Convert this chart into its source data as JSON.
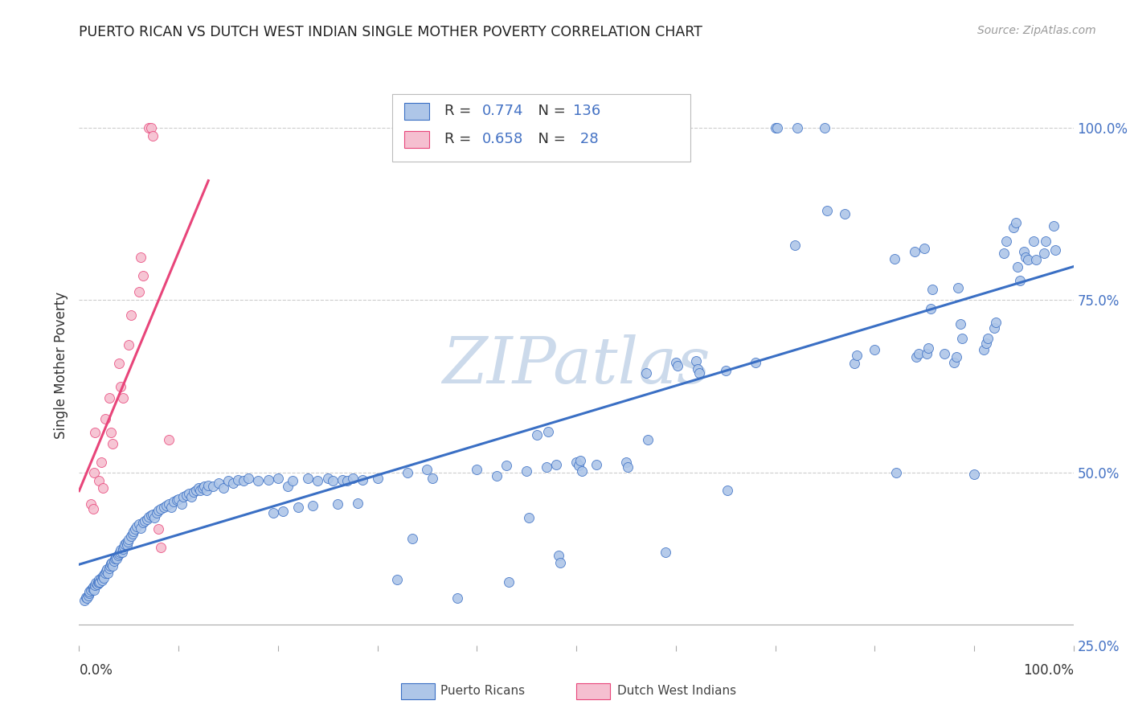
{
  "title": "PUERTO RICAN VS DUTCH WEST INDIAN SINGLE MOTHER POVERTY CORRELATION CHART",
  "source": "Source: ZipAtlas.com",
  "ylabel": "Single Mother Poverty",
  "color_blue": "#aec6e8",
  "color_pink": "#f5bfd0",
  "line_blue": "#3a6fc4",
  "line_pink": "#e8457a",
  "text_blue": "#4472c4",
  "watermark_color": "#ccdaeb",
  "blue_points": [
    [
      0.005,
      0.315
    ],
    [
      0.007,
      0.32
    ],
    [
      0.008,
      0.318
    ],
    [
      0.009,
      0.322
    ],
    [
      0.01,
      0.325
    ],
    [
      0.01,
      0.328
    ],
    [
      0.012,
      0.33
    ],
    [
      0.013,
      0.332
    ],
    [
      0.014,
      0.335
    ],
    [
      0.015,
      0.333
    ],
    [
      0.015,
      0.33
    ],
    [
      0.016,
      0.337
    ],
    [
      0.017,
      0.34
    ],
    [
      0.018,
      0.338
    ],
    [
      0.019,
      0.342
    ],
    [
      0.02,
      0.345
    ],
    [
      0.02,
      0.34
    ],
    [
      0.021,
      0.342
    ],
    [
      0.022,
      0.347
    ],
    [
      0.023,
      0.344
    ],
    [
      0.024,
      0.35
    ],
    [
      0.025,
      0.352
    ],
    [
      0.025,
      0.348
    ],
    [
      0.026,
      0.355
    ],
    [
      0.027,
      0.358
    ],
    [
      0.028,
      0.36
    ],
    [
      0.029,
      0.355
    ],
    [
      0.03,
      0.362
    ],
    [
      0.031,
      0.365
    ],
    [
      0.032,
      0.368
    ],
    [
      0.033,
      0.37
    ],
    [
      0.034,
      0.365
    ],
    [
      0.035,
      0.372
    ],
    [
      0.036,
      0.375
    ],
    [
      0.037,
      0.378
    ],
    [
      0.038,
      0.375
    ],
    [
      0.039,
      0.38
    ],
    [
      0.04,
      0.382
    ],
    [
      0.041,
      0.385
    ],
    [
      0.042,
      0.388
    ],
    [
      0.043,
      0.385
    ],
    [
      0.044,
      0.39
    ],
    [
      0.045,
      0.393
    ],
    [
      0.046,
      0.396
    ],
    [
      0.047,
      0.399
    ],
    [
      0.048,
      0.395
    ],
    [
      0.049,
      0.4
    ],
    [
      0.05,
      0.403
    ],
    [
      0.052,
      0.408
    ],
    [
      0.054,
      0.412
    ],
    [
      0.055,
      0.415
    ],
    [
      0.056,
      0.418
    ],
    [
      0.058,
      0.422
    ],
    [
      0.06,
      0.425
    ],
    [
      0.062,
      0.42
    ],
    [
      0.064,
      0.428
    ],
    [
      0.066,
      0.43
    ],
    [
      0.068,
      0.433
    ],
    [
      0.07,
      0.436
    ],
    [
      0.072,
      0.438
    ],
    [
      0.074,
      0.44
    ],
    [
      0.076,
      0.435
    ],
    [
      0.078,
      0.442
    ],
    [
      0.08,
      0.445
    ],
    [
      0.082,
      0.448
    ],
    [
      0.085,
      0.45
    ],
    [
      0.088,
      0.452
    ],
    [
      0.09,
      0.455
    ],
    [
      0.093,
      0.45
    ],
    [
      0.095,
      0.458
    ],
    [
      0.098,
      0.46
    ],
    [
      0.1,
      0.462
    ],
    [
      0.103,
      0.455
    ],
    [
      0.105,
      0.465
    ],
    [
      0.108,
      0.468
    ],
    [
      0.11,
      0.47
    ],
    [
      0.113,
      0.465
    ],
    [
      0.115,
      0.472
    ],
    [
      0.118,
      0.475
    ],
    [
      0.12,
      0.478
    ],
    [
      0.122,
      0.474
    ],
    [
      0.124,
      0.478
    ],
    [
      0.126,
      0.48
    ],
    [
      0.128,
      0.475
    ],
    [
      0.13,
      0.482
    ],
    [
      0.135,
      0.48
    ],
    [
      0.14,
      0.485
    ],
    [
      0.145,
      0.478
    ],
    [
      0.15,
      0.488
    ],
    [
      0.155,
      0.485
    ],
    [
      0.16,
      0.49
    ],
    [
      0.165,
      0.488
    ],
    [
      0.17,
      0.492
    ],
    [
      0.18,
      0.488
    ],
    [
      0.19,
      0.49
    ],
    [
      0.195,
      0.442
    ],
    [
      0.2,
      0.492
    ],
    [
      0.205,
      0.444
    ],
    [
      0.21,
      0.48
    ],
    [
      0.215,
      0.488
    ],
    [
      0.22,
      0.45
    ],
    [
      0.23,
      0.492
    ],
    [
      0.235,
      0.452
    ],
    [
      0.24,
      0.488
    ],
    [
      0.25,
      0.492
    ],
    [
      0.255,
      0.488
    ],
    [
      0.26,
      0.455
    ],
    [
      0.265,
      0.49
    ],
    [
      0.27,
      0.488
    ],
    [
      0.275,
      0.492
    ],
    [
      0.28,
      0.456
    ],
    [
      0.285,
      0.49
    ],
    [
      0.3,
      0.492
    ],
    [
      0.32,
      0.345
    ],
    [
      0.33,
      0.5
    ],
    [
      0.335,
      0.405
    ],
    [
      0.35,
      0.505
    ],
    [
      0.355,
      0.492
    ],
    [
      0.38,
      0.318
    ],
    [
      0.4,
      0.505
    ],
    [
      0.42,
      0.495
    ],
    [
      0.43,
      0.51
    ],
    [
      0.432,
      0.342
    ],
    [
      0.45,
      0.502
    ],
    [
      0.452,
      0.435
    ],
    [
      0.46,
      0.555
    ],
    [
      0.47,
      0.508
    ],
    [
      0.472,
      0.56
    ],
    [
      0.48,
      0.512
    ],
    [
      0.482,
      0.38
    ],
    [
      0.484,
      0.37
    ],
    [
      0.5,
      0.515
    ],
    [
      0.502,
      0.51
    ],
    [
      0.504,
      0.518
    ],
    [
      0.506,
      0.502
    ],
    [
      0.52,
      0.512
    ],
    [
      0.55,
      0.515
    ],
    [
      0.552,
      0.508
    ],
    [
      0.57,
      0.645
    ],
    [
      0.572,
      0.548
    ],
    [
      0.59,
      0.385
    ],
    [
      0.6,
      0.66
    ],
    [
      0.602,
      0.655
    ],
    [
      0.62,
      0.662
    ],
    [
      0.622,
      0.65
    ],
    [
      0.624,
      0.645
    ],
    [
      0.65,
      0.648
    ],
    [
      0.652,
      0.475
    ],
    [
      0.68,
      0.66
    ],
    [
      0.7,
      1.0
    ],
    [
      0.702,
      1.0
    ],
    [
      0.72,
      0.83
    ],
    [
      0.722,
      1.0
    ],
    [
      0.75,
      1.0
    ],
    [
      0.752,
      0.88
    ],
    [
      0.77,
      0.875
    ],
    [
      0.78,
      0.658
    ],
    [
      0.782,
      0.67
    ],
    [
      0.8,
      0.678
    ],
    [
      0.82,
      0.81
    ],
    [
      0.822,
      0.5
    ],
    [
      0.84,
      0.82
    ],
    [
      0.842,
      0.668
    ],
    [
      0.844,
      0.672
    ],
    [
      0.85,
      0.825
    ],
    [
      0.852,
      0.672
    ],
    [
      0.854,
      0.68
    ],
    [
      0.856,
      0.738
    ],
    [
      0.858,
      0.765
    ],
    [
      0.87,
      0.672
    ],
    [
      0.88,
      0.66
    ],
    [
      0.882,
      0.668
    ],
    [
      0.884,
      0.768
    ],
    [
      0.886,
      0.715
    ],
    [
      0.888,
      0.695
    ],
    [
      0.9,
      0.498
    ],
    [
      0.91,
      0.678
    ],
    [
      0.912,
      0.688
    ],
    [
      0.914,
      0.695
    ],
    [
      0.92,
      0.71
    ],
    [
      0.922,
      0.718
    ],
    [
      0.93,
      0.818
    ],
    [
      0.932,
      0.835
    ],
    [
      0.94,
      0.855
    ],
    [
      0.942,
      0.862
    ],
    [
      0.944,
      0.798
    ],
    [
      0.946,
      0.778
    ],
    [
      0.95,
      0.82
    ],
    [
      0.952,
      0.812
    ],
    [
      0.954,
      0.808
    ],
    [
      0.96,
      0.835
    ],
    [
      0.962,
      0.808
    ],
    [
      0.97,
      0.818
    ],
    [
      0.972,
      0.835
    ],
    [
      0.98,
      0.858
    ],
    [
      0.982,
      0.822
    ]
  ],
  "pink_points": [
    [
      0.012,
      0.455
    ],
    [
      0.014,
      0.448
    ],
    [
      0.015,
      0.5
    ],
    [
      0.016,
      0.558
    ],
    [
      0.02,
      0.488
    ],
    [
      0.022,
      0.515
    ],
    [
      0.024,
      0.478
    ],
    [
      0.026,
      0.578
    ],
    [
      0.03,
      0.608
    ],
    [
      0.032,
      0.558
    ],
    [
      0.034,
      0.542
    ],
    [
      0.04,
      0.658
    ],
    [
      0.042,
      0.625
    ],
    [
      0.044,
      0.608
    ],
    [
      0.05,
      0.685
    ],
    [
      0.052,
      0.728
    ],
    [
      0.06,
      0.762
    ],
    [
      0.062,
      0.812
    ],
    [
      0.064,
      0.785
    ],
    [
      0.07,
      1.0
    ],
    [
      0.072,
      1.0
    ],
    [
      0.074,
      0.988
    ],
    [
      0.08,
      0.418
    ],
    [
      0.082,
      0.392
    ],
    [
      0.09,
      0.548
    ]
  ]
}
